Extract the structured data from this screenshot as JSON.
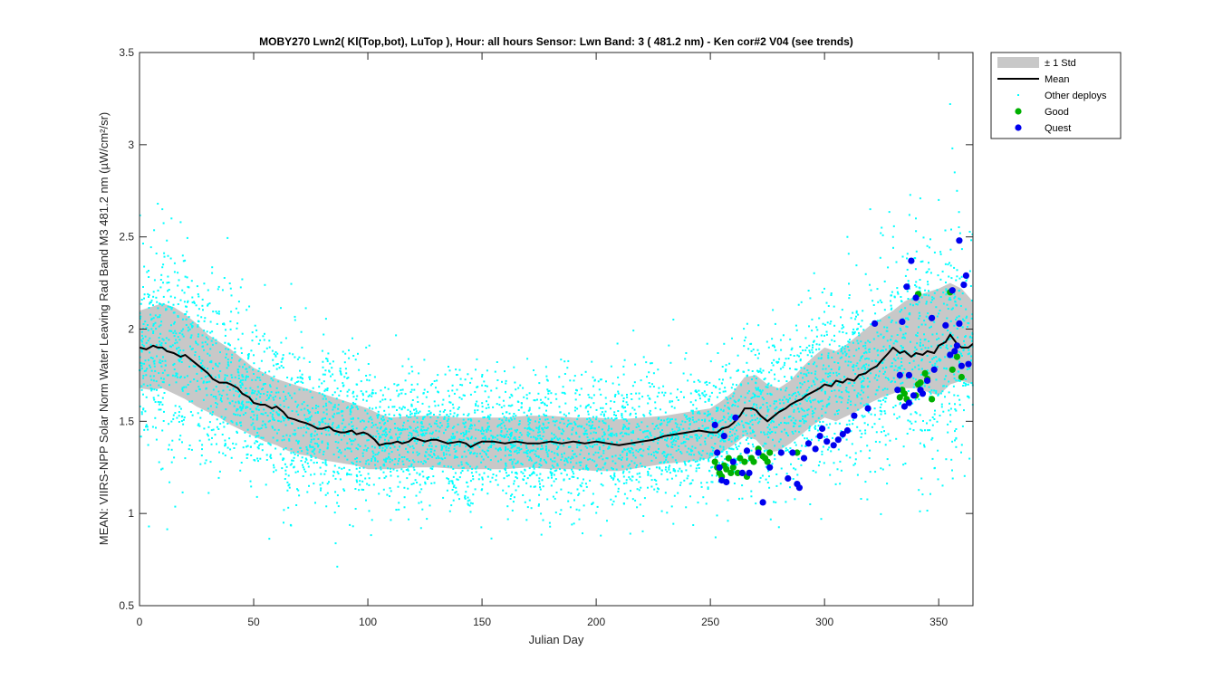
{
  "chart_data": {
    "type": "scatter",
    "title": "MOBY270   Lwn2( Kl(Top,bot), LuTop ),   Hour: all hours  Sensor: Lwn Band: 3 ( 481.2 nm)  - Ken cor#2 V04 (see trends)",
    "xlabel": "Julian Day",
    "ylabel": "MEAN: VIIRS-NPP Solar Norm Water Leaving Rad Band M3 481.2 nm (µW/cm²/sr)",
    "xlim": [
      0,
      365
    ],
    "ylim": [
      0.5,
      3.5
    ],
    "xticks": [
      0,
      50,
      100,
      150,
      200,
      250,
      300,
      350
    ],
    "yticks": [
      0.5,
      1,
      1.5,
      2,
      2.5,
      3,
      3.5
    ],
    "ytick_labels": [
      "0.5",
      "1",
      "1.5",
      "2",
      "2.5",
      "3",
      "3.5"
    ],
    "grid": false,
    "legend_position": "outside-top-right",
    "colors": {
      "std_band": "#c8c8c8",
      "mean": "#000000",
      "other": "#00ffff",
      "good": "#00b000",
      "quest": "#0000ee"
    },
    "series": [
      {
        "name": "± 1 Std",
        "kind": "band",
        "x": [
          0,
          5,
          10,
          15,
          20,
          25,
          30,
          35,
          40,
          45,
          50,
          55,
          60,
          65,
          70,
          75,
          80,
          85,
          90,
          95,
          100,
          105,
          110,
          120,
          130,
          140,
          150,
          160,
          170,
          180,
          190,
          200,
          210,
          220,
          230,
          240,
          250,
          255,
          260,
          265,
          270,
          275,
          280,
          285,
          290,
          295,
          300,
          305,
          310,
          315,
          320,
          325,
          330,
          335,
          340,
          345,
          350,
          355,
          360,
          365
        ],
        "upper": [
          2.1,
          2.12,
          2.14,
          2.12,
          2.08,
          2.03,
          1.97,
          1.93,
          1.89,
          1.84,
          1.79,
          1.76,
          1.73,
          1.71,
          1.69,
          1.67,
          1.65,
          1.63,
          1.61,
          1.59,
          1.57,
          1.54,
          1.52,
          1.53,
          1.53,
          1.52,
          1.52,
          1.52,
          1.53,
          1.53,
          1.52,
          1.52,
          1.51,
          1.52,
          1.53,
          1.55,
          1.57,
          1.61,
          1.66,
          1.74,
          1.75,
          1.7,
          1.68,
          1.72,
          1.79,
          1.85,
          1.9,
          1.88,
          1.92,
          1.97,
          2.02,
          2.06,
          2.1,
          2.15,
          2.18,
          2.2,
          2.22,
          2.25,
          2.22,
          2.15
        ],
        "lower": [
          1.68,
          1.67,
          1.68,
          1.65,
          1.62,
          1.58,
          1.55,
          1.52,
          1.48,
          1.45,
          1.42,
          1.39,
          1.37,
          1.34,
          1.32,
          1.31,
          1.29,
          1.28,
          1.27,
          1.26,
          1.24,
          1.24,
          1.24,
          1.25,
          1.25,
          1.24,
          1.24,
          1.24,
          1.25,
          1.24,
          1.24,
          1.23,
          1.23,
          1.25,
          1.27,
          1.28,
          1.3,
          1.33,
          1.37,
          1.42,
          1.4,
          1.33,
          1.34,
          1.38,
          1.43,
          1.48,
          1.52,
          1.5,
          1.53,
          1.56,
          1.6,
          1.63,
          1.65,
          1.68,
          1.68,
          1.66,
          1.64,
          1.7,
          1.72,
          1.7
        ]
      },
      {
        "name": "Mean",
        "kind": "line",
        "x": [
          0,
          3,
          6,
          8,
          10,
          12,
          15,
          18,
          20,
          22,
          25,
          28,
          30,
          32,
          35,
          38,
          40,
          43,
          45,
          48,
          50,
          53,
          55,
          58,
          60,
          63,
          65,
          68,
          70,
          73,
          75,
          78,
          80,
          83,
          85,
          88,
          90,
          93,
          95,
          98,
          100,
          103,
          105,
          108,
          110,
          113,
          115,
          118,
          120,
          125,
          128,
          130,
          135,
          140,
          143,
          145,
          148,
          150,
          155,
          160,
          165,
          170,
          175,
          180,
          185,
          190,
          195,
          200,
          205,
          210,
          215,
          220,
          225,
          230,
          235,
          240,
          245,
          250,
          253,
          255,
          258,
          260,
          263,
          265,
          268,
          270,
          272,
          275,
          278,
          280,
          283,
          285,
          288,
          290,
          292,
          295,
          298,
          300,
          303,
          305,
          308,
          310,
          313,
          315,
          318,
          320,
          323,
          325,
          328,
          330,
          333,
          335,
          338,
          340,
          343,
          345,
          348,
          350,
          353,
          355,
          358,
          360,
          363,
          365
        ],
        "y": [
          1.9,
          1.89,
          1.91,
          1.9,
          1.9,
          1.88,
          1.87,
          1.85,
          1.86,
          1.84,
          1.81,
          1.78,
          1.76,
          1.73,
          1.71,
          1.71,
          1.7,
          1.68,
          1.65,
          1.63,
          1.6,
          1.59,
          1.59,
          1.57,
          1.58,
          1.55,
          1.52,
          1.51,
          1.5,
          1.49,
          1.48,
          1.46,
          1.46,
          1.47,
          1.45,
          1.44,
          1.44,
          1.45,
          1.43,
          1.44,
          1.43,
          1.4,
          1.37,
          1.38,
          1.38,
          1.39,
          1.38,
          1.39,
          1.41,
          1.39,
          1.4,
          1.4,
          1.38,
          1.39,
          1.38,
          1.36,
          1.38,
          1.39,
          1.39,
          1.38,
          1.39,
          1.38,
          1.38,
          1.39,
          1.38,
          1.39,
          1.38,
          1.39,
          1.38,
          1.37,
          1.38,
          1.39,
          1.4,
          1.42,
          1.43,
          1.44,
          1.45,
          1.44,
          1.44,
          1.46,
          1.47,
          1.49,
          1.53,
          1.57,
          1.57,
          1.56,
          1.53,
          1.5,
          1.53,
          1.55,
          1.57,
          1.59,
          1.61,
          1.62,
          1.64,
          1.66,
          1.68,
          1.7,
          1.69,
          1.72,
          1.71,
          1.73,
          1.72,
          1.75,
          1.76,
          1.78,
          1.8,
          1.83,
          1.87,
          1.9,
          1.87,
          1.88,
          1.85,
          1.87,
          1.86,
          1.88,
          1.87,
          1.91,
          1.93,
          1.97,
          1.92,
          1.9,
          1.9,
          1.92
        ]
      },
      {
        "name": "Other deploys",
        "kind": "scatter",
        "count": 5200,
        "spread_multiplier": 1.25,
        "sample_outliers": [
          [
            8,
            2.68
          ],
          [
            10,
            2.65
          ],
          [
            14,
            2.6
          ],
          [
            18,
            2.58
          ],
          [
            12,
            2.48
          ],
          [
            40,
            2.22
          ],
          [
            45,
            2.27
          ],
          [
            355,
            3.22
          ],
          [
            356,
            2.98
          ],
          [
            357,
            2.85
          ],
          [
            358,
            2.75
          ],
          [
            340,
            2.6
          ],
          [
            345,
            2.45
          ],
          [
            325,
            2.55
          ],
          [
            310,
            2.5
          ],
          [
            320,
            2.65
          ],
          [
            330,
            2.5
          ],
          [
            350,
            2.7
          ],
          [
            198,
            1.05
          ],
          [
            202,
            0.88
          ],
          [
            182,
            1.08
          ],
          [
            175,
            1.1
          ],
          [
            20,
            1.3
          ],
          [
            10,
            1.45
          ],
          [
            268,
            1.88
          ]
        ]
      },
      {
        "name": "Good",
        "kind": "scatter",
        "points": [
          [
            252,
            1.28
          ],
          [
            253,
            1.25
          ],
          [
            254,
            1.22
          ],
          [
            255,
            1.2
          ],
          [
            256,
            1.26
          ],
          [
            257,
            1.24
          ],
          [
            258,
            1.3
          ],
          [
            259,
            1.22
          ],
          [
            260,
            1.25
          ],
          [
            262,
            1.22
          ],
          [
            263,
            1.3
          ],
          [
            265,
            1.28
          ],
          [
            266,
            1.2
          ],
          [
            268,
            1.3
          ],
          [
            269,
            1.28
          ],
          [
            271,
            1.35
          ],
          [
            273,
            1.31
          ],
          [
            274,
            1.3
          ],
          [
            275,
            1.28
          ],
          [
            276,
            1.33
          ],
          [
            288,
            1.33
          ],
          [
            333,
            1.63
          ],
          [
            334,
            1.67
          ],
          [
            335,
            1.65
          ],
          [
            336,
            1.62
          ],
          [
            340,
            1.64
          ],
          [
            341,
            1.7
          ],
          [
            342,
            1.71
          ],
          [
            344,
            1.76
          ],
          [
            345,
            1.73
          ],
          [
            347,
            1.62
          ],
          [
            355,
            2.2
          ],
          [
            356,
            1.78
          ],
          [
            358,
            1.85
          ],
          [
            360,
            1.74
          ],
          [
            341,
            2.19
          ]
        ]
      },
      {
        "name": "Quest",
        "kind": "scatter",
        "points": [
          [
            252,
            1.48
          ],
          [
            253,
            1.33
          ],
          [
            254,
            1.25
          ],
          [
            255,
            1.18
          ],
          [
            256,
            1.42
          ],
          [
            257,
            1.17
          ],
          [
            260,
            1.28
          ],
          [
            261,
            1.52
          ],
          [
            264,
            1.22
          ],
          [
            266,
            1.34
          ],
          [
            267,
            1.22
          ],
          [
            271,
            1.33
          ],
          [
            273,
            1.06
          ],
          [
            276,
            1.25
          ],
          [
            281,
            1.33
          ],
          [
            284,
            1.19
          ],
          [
            286,
            1.33
          ],
          [
            288,
            1.16
          ],
          [
            289,
            1.14
          ],
          [
            291,
            1.3
          ],
          [
            293,
            1.38
          ],
          [
            296,
            1.35
          ],
          [
            298,
            1.42
          ],
          [
            299,
            1.46
          ],
          [
            301,
            1.39
          ],
          [
            304,
            1.37
          ],
          [
            306,
            1.4
          ],
          [
            308,
            1.43
          ],
          [
            310,
            1.45
          ],
          [
            313,
            1.53
          ],
          [
            319,
            1.57
          ],
          [
            322,
            2.03
          ],
          [
            332,
            1.67
          ],
          [
            333,
            1.75
          ],
          [
            334,
            2.04
          ],
          [
            335,
            1.58
          ],
          [
            336,
            2.23
          ],
          [
            337,
            1.6
          ],
          [
            337,
            1.75
          ],
          [
            338,
            2.37
          ],
          [
            339,
            1.64
          ],
          [
            340,
            2.17
          ],
          [
            342,
            1.67
          ],
          [
            343,
            1.65
          ],
          [
            345,
            1.72
          ],
          [
            347,
            2.06
          ],
          [
            348,
            1.78
          ],
          [
            353,
            2.02
          ],
          [
            355,
            1.86
          ],
          [
            357,
            1.88
          ],
          [
            358,
            1.91
          ],
          [
            359,
            2.03
          ],
          [
            359,
            2.48
          ],
          [
            360,
            1.8
          ],
          [
            361,
            2.24
          ],
          [
            362,
            2.29
          ],
          [
            363,
            1.81
          ],
          [
            356,
            2.21
          ]
        ]
      }
    ]
  },
  "legend": {
    "items": [
      {
        "label": "± 1 Std",
        "symbol": "band"
      },
      {
        "label": "Mean",
        "symbol": "line"
      },
      {
        "label": "Other deploys",
        "symbol": "dot-small"
      },
      {
        "label": "Good",
        "symbol": "dot-good"
      },
      {
        "label": "Quest",
        "symbol": "dot-quest"
      }
    ]
  }
}
